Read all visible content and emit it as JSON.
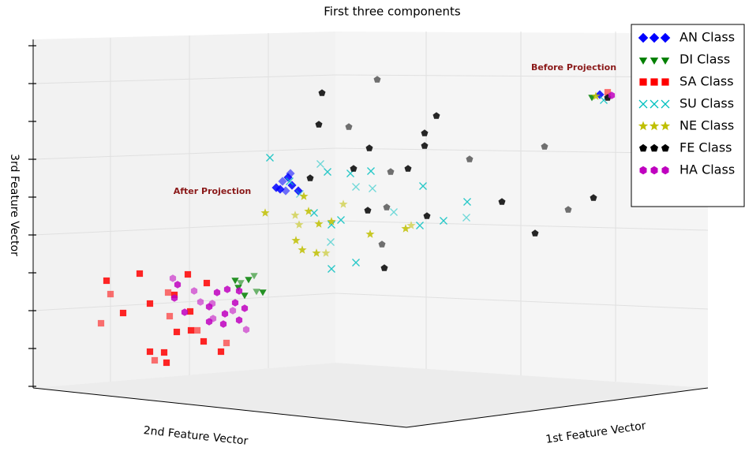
{
  "chart_data": {
    "type": "scatter",
    "title": "First three components",
    "xlabel": "1st Feature Vector",
    "ylabel": "2nd Feature Vector",
    "zlabel": "3rd Feature Vector",
    "annotations": [
      "Before Projection",
      "After Projection"
    ],
    "xlim": [
      0,
      94.4
    ],
    "ylim": [
      0,
      57.2
    ],
    "series": [
      {
        "name": "AN Class",
        "color": "#0000ff",
        "marker": "diamond",
        "x": [
          35,
          35.8,
          36.5,
          37,
          36.2,
          37.8,
          35.5,
          36.8,
          76
        ],
        "y": [
          33.4,
          34.2,
          34.7,
          33.7,
          33,
          33,
          33.2,
          35.2,
          45.2
        ]
      },
      {
        "name": "DI Class",
        "color": "#008000",
        "marker": "triangle-down",
        "x": [
          29.8,
          30.5,
          31.5,
          30.2,
          32.5,
          33.3,
          31,
          32.2,
          75
        ],
        "y": [
          21.7,
          21.4,
          21.8,
          20.8,
          20.3,
          20.2,
          19.8,
          22.3,
          44.9
        ]
      },
      {
        "name": "SA Class",
        "color": "#ff0000",
        "marker": "square",
        "x": [
          13.5,
          14,
          17.7,
          19,
          12.8,
          15.6,
          22.1,
          21.3,
          26.2,
          23.8,
          21.5,
          22.4,
          24.2,
          25,
          24.1,
          25.8,
          28.7,
          19,
          20.8,
          19.6,
          21.1,
          28,
          77
        ],
        "y": [
          21.6,
          19.9,
          22.5,
          18.7,
          16.2,
          17.5,
          19.8,
          20.1,
          21.3,
          22.4,
          17.1,
          15.1,
          15.3,
          15.3,
          17.7,
          13.9,
          13.7,
          12.6,
          12.5,
          11.5,
          11.2,
          12.6,
          45.5
        ]
      },
      {
        "name": "SU Class",
        "color": "#00bfbf",
        "marker": "x",
        "x": [
          34.2,
          40.6,
          41.5,
          36.7,
          38,
          44.4,
          47,
          47.2,
          39.8,
          43.2,
          41.9,
          42,
          45.1,
          49.9,
          53.6,
          59.2,
          59.1,
          56.2,
          53.2,
          45.1,
          42,
          76.5
        ],
        "y": [
          37.2,
          36.4,
          35.4,
          34.2,
          32.6,
          35.2,
          35.5,
          33.3,
          30.2,
          29.3,
          26.5,
          23.1,
          23.9,
          30.3,
          33.6,
          31.6,
          29.6,
          29.2,
          28.6,
          33.5,
          28.7,
          44.5
        ]
      },
      {
        "name": "NE Class",
        "color": "#bfbf00",
        "marker": "star",
        "x": [
          33.6,
          37.4,
          38.5,
          39.1,
          37.9,
          42,
          40.4,
          43.5,
          38.3,
          40.1,
          41.3,
          46.9,
          51.4,
          52.1,
          37.5,
          75.5
        ],
        "y": [
          30.2,
          29.9,
          32.3,
          30.4,
          28.7,
          29.1,
          28.8,
          31.3,
          25.5,
          25.1,
          25.1,
          27.5,
          28.2,
          28.6,
          26.7,
          45
        ]
      },
      {
        "name": "FE Class",
        "color": "#000000",
        "marker": "pentagon",
        "x": [
          40.8,
          47.8,
          55.3,
          40.4,
          44.2,
          46.8,
          53.8,
          59.5,
          39.3,
          44.8,
          49.5,
          51.7,
          46.6,
          49,
          54.1,
          63.6,
          72,
          75.2,
          67.8,
          48.4,
          48.7,
          53.8,
          69,
          77
        ],
        "y": [
          45.4,
          47.1,
          42.5,
          41.4,
          41.1,
          38.4,
          38.7,
          37,
          34.6,
          35.8,
          35.4,
          35.8,
          30.5,
          30.9,
          29.8,
          31.6,
          30.6,
          32.1,
          27.6,
          26.2,
          23.2,
          40.3,
          38.6,
          44.8
        ]
      },
      {
        "name": "HA Class",
        "color": "#bf00bf",
        "marker": "hexagon",
        "x": [
          22.5,
          24.6,
          27.5,
          22.1,
          25.4,
          28.8,
          30.3,
          26.9,
          29.8,
          26.5,
          29.5,
          23.4,
          28.5,
          27,
          26.5,
          30.3,
          31.2,
          28.3,
          31,
          21.9,
          77.5
        ],
        "y": [
          21.1,
          20.3,
          20.1,
          19.4,
          18.9,
          20.5,
          20.3,
          18.7,
          18.8,
          18.3,
          17.8,
          17.6,
          17.4,
          16.8,
          16.4,
          16.6,
          15.4,
          16.1,
          18.1,
          21.9,
          45.1
        ]
      }
    ]
  }
}
